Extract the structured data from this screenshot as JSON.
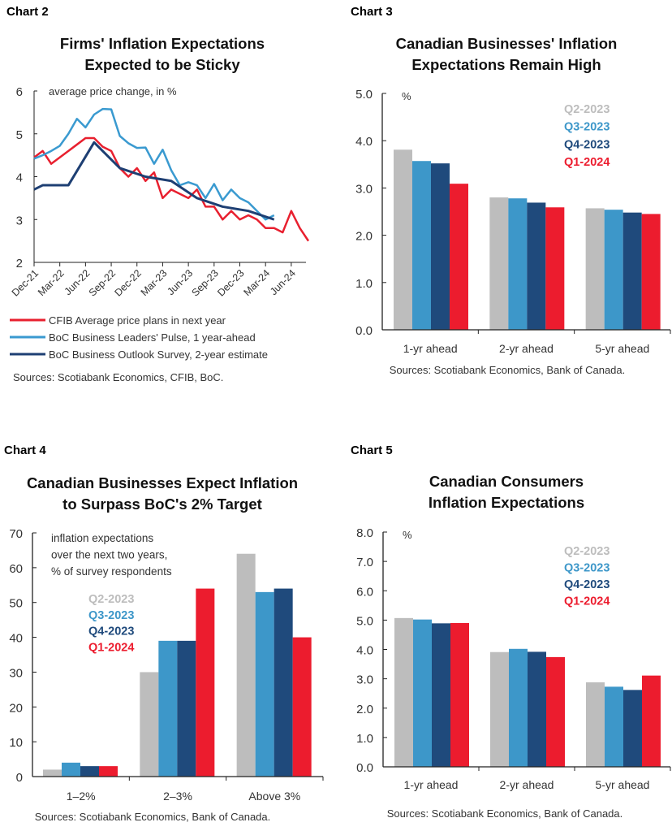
{
  "colors": {
    "gray": "#bdbdbd",
    "light_blue": "#3d97c9",
    "navy": "#1f4a7c",
    "red": "#ec1c2e"
  },
  "chart_data": [
    {
      "panel_label": "Chart 2",
      "type": "line",
      "title_lines": [
        "Firms' Inflation Expectations",
        "Expected to be Sticky"
      ],
      "unit_label": "average price change, in %",
      "ylim": [
        2,
        6
      ],
      "yticks": [
        "2",
        "3",
        "4",
        "5",
        "6"
      ],
      "xlim": [
        "Dec-21",
        "Aug-24"
      ],
      "xticks": [
        "Dec-21",
        "Mar-22",
        "Jun-22",
        "Sep-22",
        "Dec-22",
        "Mar-23",
        "Jun-23",
        "Sep-23",
        "Dec-23",
        "Mar-24",
        "Jun-24"
      ],
      "legend_position": "bottom",
      "series": [
        {
          "name": "CFIB Average price plans in next year",
          "color": "#e8202f",
          "start": "Dec-21",
          "frequency": "monthly",
          "values": [
            4.45,
            4.6,
            4.3,
            4.45,
            4.6,
            4.75,
            4.9,
            4.9,
            4.7,
            4.6,
            4.2,
            4.0,
            4.2,
            3.9,
            4.1,
            3.5,
            3.7,
            3.6,
            3.5,
            3.7,
            3.3,
            3.3,
            3.0,
            3.2,
            3.0,
            3.1,
            3.0,
            2.8,
            2.8,
            2.7,
            3.2,
            2.8,
            2.5
          ]
        },
        {
          "name": "BoC Business Leaders' Pulse, 1 year-ahead",
          "color": "#3a9ad0",
          "start": "Dec-21",
          "frequency": "monthly",
          "values": [
            4.42,
            4.5,
            4.6,
            4.72,
            5.0,
            5.35,
            5.15,
            5.45,
            5.58,
            5.57,
            4.95,
            4.78,
            4.67,
            4.68,
            4.3,
            4.63,
            4.15,
            3.8,
            3.87,
            3.8,
            3.5,
            3.83,
            3.45,
            3.7,
            3.5,
            3.4,
            3.2,
            3.0,
            3.1
          ]
        },
        {
          "name": "BoC Business Outlook Survey, 2-year estimate",
          "color": "#1e3f73",
          "x": [
            "Dec-21",
            "Jan-22",
            "Apr-22",
            "Jul-22",
            "Oct-22",
            "Jan-23",
            "Apr-23",
            "Jul-23",
            "Oct-23",
            "Jan-24",
            "Apr-24"
          ],
          "values": [
            3.7,
            3.8,
            3.8,
            4.8,
            4.2,
            4.0,
            3.9,
            3.5,
            3.3,
            3.2,
            3.0
          ]
        }
      ],
      "source": "Sources: Scotiabank Economics, CFIB, BoC."
    },
    {
      "panel_label": "Chart 3",
      "type": "bar",
      "title_lines": [
        "Canadian Businesses' Inflation",
        "Expectations Remain High"
      ],
      "unit_label": "%",
      "ylim": [
        0,
        5
      ],
      "yticks": [
        "0.0",
        "1.0",
        "2.0",
        "3.0",
        "4.0",
        "5.0"
      ],
      "categories": [
        "1-yr ahead",
        "2-yr ahead",
        "5-yr ahead"
      ],
      "legend_position": "top-right",
      "series": [
        {
          "name": "Q2-2023",
          "color": "#bdbdbd",
          "values": [
            3.81,
            2.8,
            2.57
          ]
        },
        {
          "name": "Q3-2023",
          "color": "#3d97c9",
          "values": [
            3.57,
            2.78,
            2.54
          ]
        },
        {
          "name": "Q4-2023",
          "color": "#1f4a7c",
          "values": [
            3.52,
            2.69,
            2.48
          ]
        },
        {
          "name": "Q1-2024",
          "color": "#ec1c2e",
          "values": [
            3.09,
            2.59,
            2.45
          ]
        }
      ],
      "source": "Sources: Scotiabank Economics, Bank of Canada."
    },
    {
      "panel_label": "Chart 4",
      "type": "bar",
      "title_lines": [
        "Canadian Businesses Expect Inflation",
        "to Surpass BoC's 2% Target"
      ],
      "unit_label_lines": [
        "inflation expectations",
        "over the next two years,",
        "% of survey respondents"
      ],
      "ylim": [
        0,
        70
      ],
      "yticks": [
        "0",
        "10",
        "20",
        "30",
        "40",
        "50",
        "60",
        "70"
      ],
      "categories": [
        "1–2%",
        "2–3%",
        "Above 3%"
      ],
      "legend_position": "top-left",
      "series": [
        {
          "name": "Q2-2023",
          "color": "#bdbdbd",
          "values": [
            2,
            30,
            64
          ]
        },
        {
          "name": "Q3-2023",
          "color": "#3d97c9",
          "values": [
            4,
            39,
            53
          ]
        },
        {
          "name": "Q4-2023",
          "color": "#1f4a7c",
          "values": [
            3,
            39,
            54
          ]
        },
        {
          "name": "Q1-2024",
          "color": "#ec1c2e",
          "values": [
            3,
            54,
            40
          ]
        }
      ],
      "source": "Sources: Scotiabank Economics, Bank of Canada."
    },
    {
      "panel_label": "Chart 5",
      "type": "bar",
      "title_lines": [
        "Canadian Consumers",
        "Inflation Expectations"
      ],
      "unit_label": "%",
      "ylim": [
        0,
        8
      ],
      "yticks": [
        "0.0",
        "1.0",
        "2.0",
        "3.0",
        "4.0",
        "5.0",
        "6.0",
        "7.0",
        "8.0"
      ],
      "categories": [
        "1-yr ahead",
        "2-yr ahead",
        "5-yr ahead"
      ],
      "legend_position": "top-right",
      "series": [
        {
          "name": "Q2-2023",
          "color": "#bdbdbd",
          "values": [
            5.07,
            3.91,
            2.88
          ]
        },
        {
          "name": "Q3-2023",
          "color": "#3d97c9",
          "values": [
            5.02,
            4.02,
            2.73
          ]
        },
        {
          "name": "Q4-2023",
          "color": "#1f4a7c",
          "values": [
            4.89,
            3.92,
            2.62
          ]
        },
        {
          "name": "Q1-2024",
          "color": "#ec1c2e",
          "values": [
            4.9,
            3.74,
            3.11
          ]
        }
      ],
      "source": "Sources: Scotiabank Economics, Bank of Canada."
    }
  ]
}
